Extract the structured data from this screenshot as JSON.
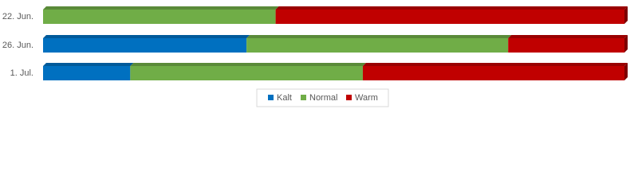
{
  "chart_data": {
    "type": "stacked-bar-horizontal",
    "categories": [
      "22. Jun.",
      "26. Jun.",
      "1. Jul."
    ],
    "series": [
      {
        "name": "Kalt",
        "color": "#0070c0",
        "values": [
          0,
          35,
          15
        ]
      },
      {
        "name": "Normal",
        "color": "#70ad47",
        "values": [
          40,
          45,
          40
        ]
      },
      {
        "name": "Warm",
        "color": "#c00000",
        "values": [
          60,
          20,
          45
        ]
      }
    ],
    "xlim": [
      0,
      100
    ],
    "legend": "bottom"
  }
}
